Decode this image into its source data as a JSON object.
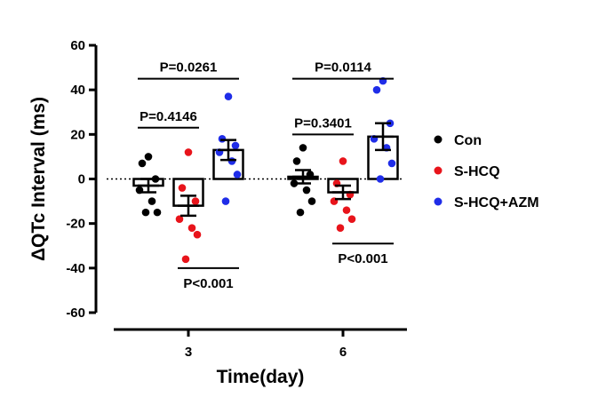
{
  "chart_data": {
    "type": "bar-scatter",
    "xlabel": "Time(day)",
    "ylabel": "ΔQTc Interval (ms)",
    "ylim": [
      -60,
      60
    ],
    "yticks": [
      -60,
      -40,
      -20,
      0,
      20,
      40,
      60
    ],
    "reference_line": 0,
    "categories": [
      "3",
      "6"
    ],
    "series": [
      {
        "name": "Con",
        "color": "#000000",
        "means": [
          -3,
          1
        ],
        "sem": [
          3,
          3
        ],
        "points": [
          [
            10,
            7,
            0,
            -5,
            -10,
            -15,
            -15
          ],
          [
            14,
            8,
            2,
            -2,
            -5,
            -10,
            -15
          ]
        ]
      },
      {
        "name": "S-HCQ",
        "color": "#e8141b",
        "means": [
          -12,
          -6
        ],
        "sem": [
          4.5,
          3
        ],
        "points": [
          [
            12,
            -4,
            -10,
            -18,
            -22,
            -25,
            -36
          ],
          [
            8,
            -2,
            -7,
            -10,
            -14,
            -18,
            -22
          ]
        ]
      },
      {
        "name": "S-HCQ+AZM",
        "color": "#1f2de8",
        "means": [
          13,
          19
        ],
        "sem": [
          4.5,
          6
        ],
        "points": [
          [
            37,
            18,
            15,
            12,
            8,
            2,
            -10
          ],
          [
            44,
            40,
            25,
            18,
            14,
            7,
            0
          ]
        ]
      }
    ],
    "comparisons": [
      {
        "day": "3",
        "from": "Con",
        "to": "S-HCQ+AZM",
        "label": "P=0.0261",
        "y": 45,
        "label_side": "above"
      },
      {
        "day": "3",
        "from": "Con",
        "to": "S-HCQ",
        "label": "P=0.4146",
        "y": 23,
        "label_side": "above"
      },
      {
        "day": "3",
        "from": "S-HCQ",
        "to": "S-HCQ+AZM",
        "label": "P<0.001",
        "y": -40,
        "label_side": "below"
      },
      {
        "day": "6",
        "from": "Con",
        "to": "S-HCQ+AZM",
        "label": "P=0.0114",
        "y": 45,
        "label_side": "above"
      },
      {
        "day": "6",
        "from": "Con",
        "to": "S-HCQ",
        "label": "P=0.3401",
        "y": 20,
        "label_side": "above"
      },
      {
        "day": "6",
        "from": "S-HCQ",
        "to": "S-HCQ+AZM",
        "label": "P<0.001",
        "y": -29,
        "label_side": "below"
      }
    ],
    "legend": {
      "placement": "right",
      "entries": [
        "Con",
        "S-HCQ",
        "S-HCQ+AZM"
      ]
    }
  }
}
